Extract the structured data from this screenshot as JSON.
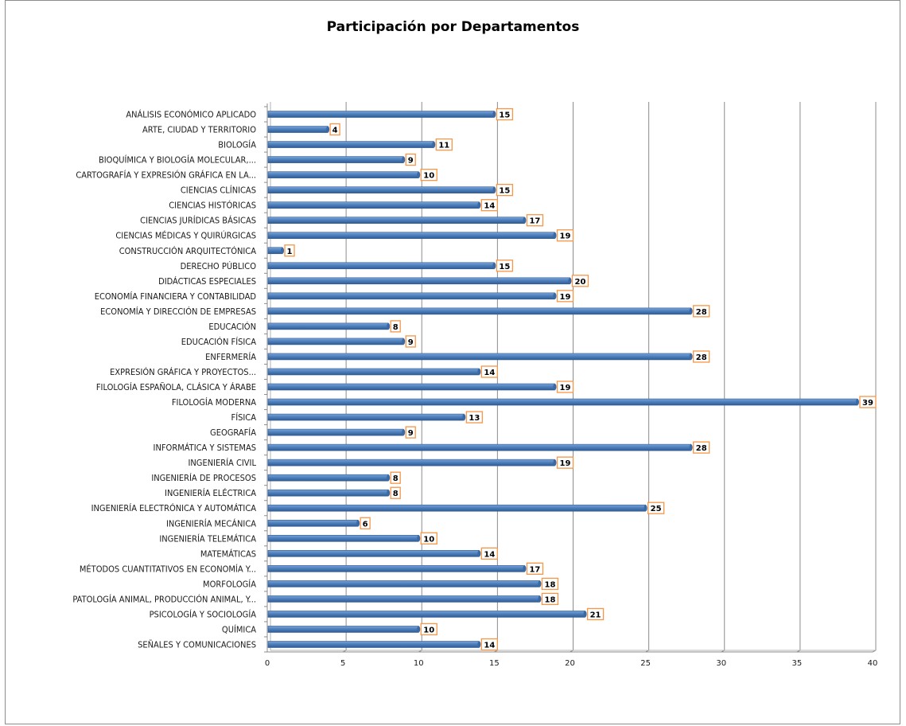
{
  "chart_data": {
    "type": "bar",
    "orientation": "horizontal",
    "title": "Participación por Departamentos",
    "xlabel": "",
    "ylabel": "",
    "xlim": [
      0,
      40
    ],
    "xticks": [
      0,
      5,
      10,
      15,
      20,
      25,
      30,
      35,
      40
    ],
    "grid": true,
    "legend": "none",
    "bar_color": "#4f81bd",
    "label_border_color": "#f79646",
    "categories": [
      "ANÁLISIS ECONÓMICO APLICADO",
      "ARTE, CIUDAD Y TERRITORIO",
      "BIOLOGÍA",
      "BIOQUÍMICA Y BIOLOGÍA MOLECULAR,...",
      "CARTOGRAFÍA Y EXPRESIÓN GRÁFICA EN LA...",
      "CIENCIAS CLÍNICAS",
      "CIENCIAS HISTÓRICAS",
      "CIENCIAS JURÍDICAS BÁSICAS",
      "CIENCIAS MÉDICAS Y QUIRÚRGICAS",
      "CONSTRUCCIÓN ARQUITECTÓNICA",
      "DERECHO PÚBLICO",
      "DIDÁCTICAS ESPECIALES",
      "ECONOMÍA FINANCIERA Y CONTABILIDAD",
      "ECONOMÍA Y DIRECCIÓN DE EMPRESAS",
      "EDUCACIÓN",
      "EDUCACIÓN FÍSICA",
      "ENFERMERÍA",
      "EXPRESIÓN GRÁFICA Y PROYECTOS...",
      "FILOLOGÍA ESPAÑOLA, CLÁSICA Y ÁRABE",
      "FILOLOGÍA MODERNA",
      "FÍSICA",
      "GEOGRAFÍA",
      "INFORMÁTICA Y SISTEMAS",
      "INGENIERÍA CIVIL",
      "INGENIERÍA DE PROCESOS",
      "INGENIERÍA ELÉCTRICA",
      "INGENIERÍA ELECTRÓNICA Y AUTOMÁTICA",
      "INGENIERÍA MECÁNICA",
      "INGENIERÍA TELEMÁTICA",
      "MATEMÁTICAS",
      "MÉTODOS CUANTITATIVOS EN ECONOMÍA Y...",
      "MORFOLOGÍA",
      "PATOLOGÍA ANIMAL, PRODUCCIÓN ANIMAL,  Y...",
      "PSICOLOGÍA Y SOCIOLOGÍA",
      "QUÍMICA",
      "SEÑALES Y COMUNICACIONES"
    ],
    "values": [
      15,
      4,
      11,
      9,
      10,
      15,
      14,
      17,
      19,
      1,
      15,
      20,
      19,
      28,
      8,
      9,
      28,
      14,
      19,
      39,
      13,
      9,
      28,
      19,
      8,
      8,
      25,
      6,
      10,
      14,
      17,
      18,
      18,
      21,
      10,
      14
    ]
  }
}
